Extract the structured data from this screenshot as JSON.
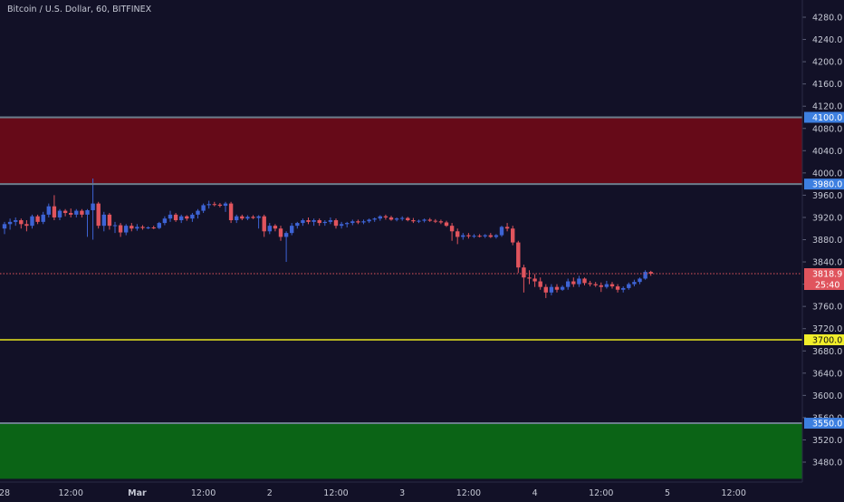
{
  "colors": {
    "background": "#121127",
    "up": "#3d63d4",
    "down": "#e0545d",
    "axis_text": "#c5c8d4",
    "resistance_zone": "#660a18",
    "support_zone": "#0b6416",
    "zone_border": "#6b7e8c",
    "support_line": "#e8e61f",
    "blue_label": "#3d7fe0",
    "yellow_label": "#f1ee2a",
    "price_label": "#e0545d"
  },
  "chart_data": {
    "type": "candlestick",
    "title": "Bitcoin / U.S. Dollar, 60, BITFINEX",
    "ylim": [
      3450,
      4300
    ],
    "yticks": [
      4280,
      4240,
      4200,
      4160,
      4120,
      4080,
      4040,
      4000,
      3960,
      3920,
      3880,
      3840,
      3800,
      3760,
      3720,
      3680,
      3640,
      3600,
      3560,
      3520,
      3480
    ],
    "ytick_labels": [
      "4280.0",
      "4240.0",
      "4200.0",
      "4160.0",
      "4120.0",
      "4080.0",
      "4040.0",
      "4000.0",
      "3960.0",
      "3920.0",
      "3880.0",
      "3840.0",
      "3800.0",
      "3760.0",
      "3720.0",
      "3680.0",
      "3640.0",
      "3600.0",
      "3560.0",
      "3520.0",
      "3480.0"
    ],
    "xticks": [
      {
        "label": "28",
        "time": 0
      },
      {
        "label": "12:00",
        "time": 12
      },
      {
        "label": "Mar",
        "time": 24
      },
      {
        "label": "12:00",
        "time": 36
      },
      {
        "label": "2",
        "time": 48
      },
      {
        "label": "12:00",
        "time": 60
      },
      {
        "label": "3",
        "time": 72
      },
      {
        "label": "12:00",
        "time": 84
      },
      {
        "label": "4",
        "time": 96
      },
      {
        "label": "12:00",
        "time": 108
      },
      {
        "label": "5",
        "time": 120
      },
      {
        "label": "12:00",
        "time": 132
      }
    ],
    "zones": [
      {
        "name": "resistance",
        "from": 3980,
        "to": 4100
      },
      {
        "name": "support",
        "from": 3450,
        "to": 3550
      }
    ],
    "levels": [
      {
        "price": 4100,
        "label": "4100.0",
        "style": "zone-border"
      },
      {
        "price": 3980,
        "label": "3980.0",
        "style": "zone-border"
      },
      {
        "price": 3700,
        "label": "3700.0",
        "style": "support-line"
      },
      {
        "price": 3550,
        "label": "3550.0",
        "style": "zone-border"
      }
    ],
    "current_price": {
      "value": 3818.9,
      "label": "3818.9",
      "countdown": "25:40"
    },
    "candles": [
      [
        0,
        3900,
        3912,
        3890,
        3908
      ],
      [
        1,
        3908,
        3918,
        3898,
        3912
      ],
      [
        2,
        3912,
        3920,
        3905,
        3915
      ],
      [
        3,
        3915,
        3918,
        3900,
        3908
      ],
      [
        4,
        3908,
        3915,
        3895,
        3905
      ],
      [
        5,
        3905,
        3925,
        3900,
        3922
      ],
      [
        6,
        3922,
        3925,
        3908,
        3912
      ],
      [
        7,
        3912,
        3930,
        3908,
        3925
      ],
      [
        8,
        3925,
        3945,
        3920,
        3940
      ],
      [
        9,
        3940,
        3960,
        3915,
        3920
      ],
      [
        10,
        3920,
        3935,
        3915,
        3932
      ],
      [
        11,
        3932,
        3935,
        3922,
        3928
      ],
      [
        12,
        3928,
        3936,
        3920,
        3925
      ],
      [
        13,
        3925,
        3935,
        3920,
        3932
      ],
      [
        14,
        3932,
        3935,
        3920,
        3925
      ],
      [
        15,
        3925,
        3935,
        3885,
        3933
      ],
      [
        16,
        3933,
        3990,
        3880,
        3945
      ],
      [
        17,
        3945,
        3948,
        3900,
        3905
      ],
      [
        18,
        3905,
        3930,
        3895,
        3925
      ],
      [
        19,
        3925,
        3928,
        3898,
        3905
      ],
      [
        20,
        3905,
        3912,
        3892,
        3906
      ],
      [
        21,
        3906,
        3910,
        3885,
        3893
      ],
      [
        22,
        3893,
        3908,
        3888,
        3905
      ],
      [
        23,
        3905,
        3910,
        3895,
        3900
      ],
      [
        24,
        3900,
        3908,
        3896,
        3903
      ],
      [
        25,
        3903,
        3906,
        3898,
        3901
      ],
      [
        26,
        3901,
        3904,
        3899,
        3902
      ],
      [
        27,
        3902,
        3905,
        3899,
        3901
      ],
      [
        28,
        3901,
        3912,
        3899,
        3910
      ],
      [
        29,
        3910,
        3922,
        3906,
        3918
      ],
      [
        30,
        3918,
        3932,
        3912,
        3925
      ],
      [
        31,
        3925,
        3928,
        3912,
        3915
      ],
      [
        32,
        3915,
        3925,
        3910,
        3922
      ],
      [
        33,
        3922,
        3924,
        3914,
        3918
      ],
      [
        34,
        3918,
        3928,
        3912,
        3925
      ],
      [
        35,
        3925,
        3935,
        3918,
        3932
      ],
      [
        36,
        3932,
        3945,
        3928,
        3942
      ],
      [
        37,
        3942,
        3950,
        3936,
        3944
      ],
      [
        38,
        3944,
        3948,
        3940,
        3943
      ],
      [
        39,
        3943,
        3946,
        3938,
        3941
      ],
      [
        40,
        3941,
        3948,
        3930,
        3945
      ],
      [
        41,
        3945,
        3948,
        3910,
        3915
      ],
      [
        42,
        3915,
        3925,
        3910,
        3922
      ],
      [
        43,
        3922,
        3925,
        3915,
        3918
      ],
      [
        44,
        3918,
        3924,
        3915,
        3921
      ],
      [
        45,
        3921,
        3924,
        3917,
        3919
      ],
      [
        46,
        3919,
        3924,
        3900,
        3922
      ],
      [
        47,
        3922,
        3925,
        3885,
        3895
      ],
      [
        48,
        3895,
        3910,
        3890,
        3905
      ],
      [
        49,
        3905,
        3908,
        3895,
        3900
      ],
      [
        50,
        3900,
        3905,
        3878,
        3885
      ],
      [
        51,
        3885,
        3895,
        3840,
        3892
      ],
      [
        52,
        3892,
        3910,
        3888,
        3905
      ],
      [
        53,
        3905,
        3912,
        3900,
        3910
      ],
      [
        54,
        3910,
        3918,
        3905,
        3915
      ],
      [
        55,
        3915,
        3920,
        3908,
        3912
      ],
      [
        56,
        3912,
        3918,
        3905,
        3915
      ],
      [
        57,
        3915,
        3918,
        3905,
        3910
      ],
      [
        58,
        3910,
        3915,
        3905,
        3912
      ],
      [
        59,
        3912,
        3920,
        3908,
        3915
      ],
      [
        60,
        3915,
        3918,
        3900,
        3905
      ],
      [
        61,
        3905,
        3912,
        3900,
        3908
      ],
      [
        62,
        3908,
        3912,
        3902,
        3910
      ],
      [
        63,
        3910,
        3916,
        3906,
        3913
      ],
      [
        64,
        3913,
        3916,
        3908,
        3911
      ],
      [
        65,
        3911,
        3916,
        3908,
        3913
      ],
      [
        66,
        3913,
        3918,
        3910,
        3916
      ],
      [
        67,
        3916,
        3920,
        3912,
        3918
      ],
      [
        68,
        3918,
        3924,
        3914,
        3922
      ],
      [
        69,
        3922,
        3925,
        3916,
        3920
      ],
      [
        70,
        3920,
        3923,
        3914,
        3916
      ],
      [
        71,
        3916,
        3920,
        3913,
        3918
      ],
      [
        72,
        3918,
        3922,
        3914,
        3919
      ],
      [
        73,
        3919,
        3921,
        3913,
        3915
      ],
      [
        74,
        3915,
        3919,
        3910,
        3913
      ],
      [
        75,
        3913,
        3916,
        3910,
        3914
      ],
      [
        76,
        3914,
        3918,
        3911,
        3916
      ],
      [
        77,
        3916,
        3919,
        3912,
        3914
      ],
      [
        78,
        3914,
        3917,
        3910,
        3913
      ],
      [
        79,
        3913,
        3916,
        3908,
        3911
      ],
      [
        80,
        3911,
        3914,
        3903,
        3905
      ],
      [
        81,
        3905,
        3910,
        3878,
        3895
      ],
      [
        82,
        3895,
        3900,
        3872,
        3885
      ],
      [
        83,
        3885,
        3892,
        3880,
        3888
      ],
      [
        84,
        3888,
        3892,
        3882,
        3886
      ],
      [
        85,
        3886,
        3890,
        3883,
        3887
      ],
      [
        86,
        3887,
        3890,
        3884,
        3886
      ],
      [
        87,
        3886,
        3890,
        3883,
        3888
      ],
      [
        88,
        3888,
        3892,
        3883,
        3885
      ],
      [
        89,
        3885,
        3890,
        3882,
        3888
      ],
      [
        90,
        3888,
        3905,
        3885,
        3903
      ],
      [
        91,
        3903,
        3910,
        3895,
        3900
      ],
      [
        92,
        3900,
        3905,
        3870,
        3875
      ],
      [
        93,
        3875,
        3878,
        3820,
        3830
      ],
      [
        94,
        3830,
        3835,
        3785,
        3812
      ],
      [
        95,
        3812,
        3825,
        3800,
        3810
      ],
      [
        96,
        3810,
        3818,
        3795,
        3805
      ],
      [
        97,
        3805,
        3812,
        3790,
        3795
      ],
      [
        98,
        3795,
        3800,
        3775,
        3785
      ],
      [
        99,
        3785,
        3800,
        3780,
        3795
      ],
      [
        100,
        3795,
        3800,
        3785,
        3790
      ],
      [
        101,
        3790,
        3798,
        3788,
        3795
      ],
      [
        102,
        3795,
        3810,
        3790,
        3805
      ],
      [
        103,
        3805,
        3812,
        3795,
        3800
      ],
      [
        104,
        3800,
        3815,
        3795,
        3810
      ],
      [
        105,
        3810,
        3812,
        3798,
        3802
      ],
      [
        106,
        3802,
        3806,
        3796,
        3800
      ],
      [
        107,
        3800,
        3804,
        3795,
        3798
      ],
      [
        108,
        3798,
        3803,
        3786,
        3795
      ],
      [
        109,
        3795,
        3806,
        3792,
        3800
      ],
      [
        110,
        3800,
        3804,
        3792,
        3796
      ],
      [
        111,
        3796,
        3800,
        3785,
        3790
      ],
      [
        112,
        3790,
        3796,
        3785,
        3793
      ],
      [
        113,
        3793,
        3803,
        3790,
        3800
      ],
      [
        114,
        3800,
        3808,
        3796,
        3804
      ],
      [
        115,
        3804,
        3812,
        3800,
        3810
      ],
      [
        116,
        3810,
        3825,
        3808,
        3822
      ],
      [
        117,
        3822,
        3824,
        3815,
        3818.9
      ]
    ]
  }
}
